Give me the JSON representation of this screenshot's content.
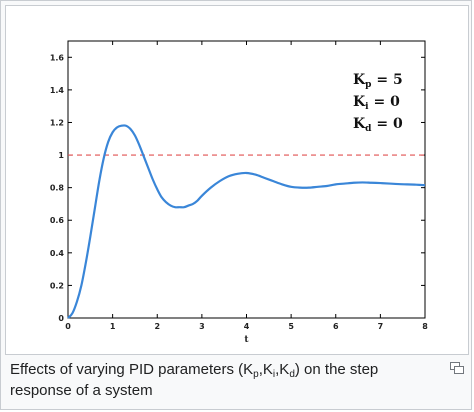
{
  "caption": {
    "prefix": "Effects of varying PID parameters (K",
    "sub_p": "p",
    "sep1": ",K",
    "sub_i": "i",
    "sep2": ",K",
    "sub_d": "d",
    "suffix": ") on the step response of a system"
  },
  "enlarge": {
    "icon": "magnify-icon",
    "tooltip": "Enlarge"
  },
  "chart_data": {
    "type": "line",
    "title": "",
    "xlabel": "t",
    "ylabel": "",
    "xlim": [
      0,
      8
    ],
    "ylim": [
      0,
      1.7
    ],
    "xticks": [
      "0",
      "1",
      "2",
      "3",
      "4",
      "5",
      "6",
      "7",
      "8"
    ],
    "yticks": [
      "0",
      "0.2",
      "0.4",
      "0.6",
      "0.8",
      "1",
      "1.2",
      "1.4",
      "1.6"
    ],
    "grid": false,
    "series": [
      {
        "color": "#3a86d8",
        "x": [
          0,
          0.1,
          0.2,
          0.3,
          0.4,
          0.5,
          0.6,
          0.7,
          0.8,
          0.9,
          1.0,
          1.1,
          1.2,
          1.3,
          1.4,
          1.5,
          1.6,
          1.7,
          1.8,
          1.9,
          2.0,
          2.1,
          2.2,
          2.3,
          2.4,
          2.5,
          2.6,
          2.7,
          2.8,
          2.9,
          3.0,
          3.2,
          3.4,
          3.6,
          3.8,
          4.0,
          4.2,
          4.4,
          4.6,
          4.8,
          5.0,
          5.2,
          5.4,
          5.6,
          5.8,
          6.0,
          6.2,
          6.4,
          6.6,
          6.8,
          7.0,
          7.2,
          7.4,
          7.6,
          7.8,
          8.0
        ],
        "y": [
          0,
          0.03,
          0.1,
          0.2,
          0.34,
          0.5,
          0.67,
          0.84,
          0.98,
          1.08,
          1.14,
          1.17,
          1.18,
          1.18,
          1.16,
          1.12,
          1.06,
          0.99,
          0.92,
          0.85,
          0.79,
          0.74,
          0.71,
          0.69,
          0.68,
          0.68,
          0.68,
          0.69,
          0.7,
          0.72,
          0.75,
          0.8,
          0.84,
          0.87,
          0.885,
          0.89,
          0.88,
          0.86,
          0.84,
          0.82,
          0.805,
          0.8,
          0.8,
          0.805,
          0.81,
          0.82,
          0.825,
          0.83,
          0.832,
          0.83,
          0.828,
          0.825,
          0.822,
          0.82,
          0.818,
          0.815
        ]
      }
    ],
    "reference_line": {
      "y": 1.0,
      "color": "#e05050",
      "style": "dashed"
    },
    "annotations": [
      {
        "main": "K",
        "sub": "p",
        "rest": " = 5"
      },
      {
        "main": "K",
        "sub": "i",
        "rest": " = 0"
      },
      {
        "main": "K",
        "sub": "d",
        "rest": " = 0"
      }
    ]
  }
}
